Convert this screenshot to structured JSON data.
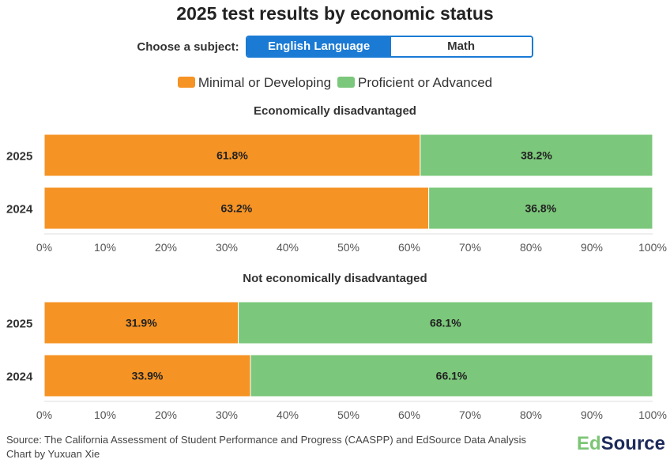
{
  "chart_data": [
    {
      "type": "bar",
      "orientation": "horizontal",
      "stacked": true,
      "title": "Economically disadvantaged",
      "categories": [
        "2025",
        "2024"
      ],
      "series": [
        {
          "name": "Minimal or Developing",
          "color": "#f59324",
          "values": [
            61.8,
            63.2
          ]
        },
        {
          "name": "Proficient or Advanced",
          "color": "#7bc77b",
          "values": [
            38.2,
            36.8
          ]
        }
      ],
      "xlim": [
        0,
        100
      ],
      "xticks": [
        "0%",
        "10%",
        "20%",
        "30%",
        "40%",
        "50%",
        "60%",
        "70%",
        "80%",
        "90%",
        "100%"
      ],
      "grid": false
    },
    {
      "type": "bar",
      "orientation": "horizontal",
      "stacked": true,
      "title": "Not economically disadvantaged",
      "categories": [
        "2025",
        "2024"
      ],
      "series": [
        {
          "name": "Minimal or Developing",
          "color": "#f59324",
          "values": [
            31.9,
            33.9
          ]
        },
        {
          "name": "Proficient or Advanced",
          "color": "#7bc77b",
          "values": [
            68.1,
            66.1
          ]
        }
      ],
      "xlim": [
        0,
        100
      ],
      "xticks": [
        "0%",
        "10%",
        "20%",
        "30%",
        "40%",
        "50%",
        "60%",
        "70%",
        "80%",
        "90%",
        "100%"
      ],
      "grid": false
    }
  ],
  "title": "2025 test results by economic status",
  "chooser": {
    "label": "Choose a subject:",
    "options": [
      "English Language Arts",
      "Math"
    ],
    "selected": "English Language Arts"
  },
  "legend": [
    {
      "label": "Minimal or Developing",
      "color": "#f59324"
    },
    {
      "label": "Proficient or Advanced",
      "color": "#7bc77b"
    }
  ],
  "footer": {
    "source": "Source: The California Assessment of Student Performance and Progress (CAASPP) and EdSource Data Analysis",
    "credit": "Chart by Yuxuan Xie",
    "logo": "EdSource"
  }
}
